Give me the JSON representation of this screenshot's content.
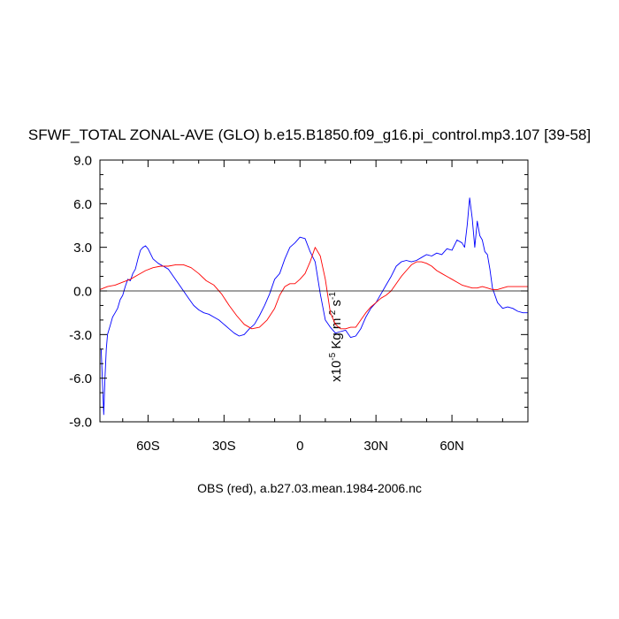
{
  "chart_data": {
    "type": "line",
    "title": "SFWF_TOTAL ZONAL-AVE (GLO) b.e15.B1850.f09_g16.pi_control.mp3.107 [39-58]",
    "xlabel": "OBS (red), a.b27.03.mean.1984-2006.nc",
    "ylabel": {
      "prefix": "x10",
      "exp1": "-5",
      "unit_a": " Kg m",
      "exp2": "-2",
      "unit_b": " s",
      "exp3": "-1"
    },
    "xlim": [
      -79,
      90
    ],
    "ylim": [
      -9,
      9
    ],
    "y_ticks": [
      -9,
      -6,
      -3,
      0,
      3,
      6,
      9
    ],
    "y_tick_labels": [
      "-9.0",
      "-6.0",
      "-3.0",
      "0.0",
      "3.0",
      "6.0",
      "9.0"
    ],
    "x_ticks": [
      -60,
      -30,
      0,
      30,
      60
    ],
    "x_tick_labels": [
      "60S",
      "30S",
      "0",
      "30N",
      "60N"
    ],
    "zero_line": true,
    "grid": false,
    "series": [
      {
        "color": "#0000ff",
        "x": [
          -78.5,
          -77.5,
          -77,
          -76.5,
          -76,
          -75,
          -74,
          -73,
          -72,
          -71,
          -70,
          -69,
          -68,
          -67,
          -66,
          -65,
          -64,
          -63,
          -62,
          -61,
          -60,
          -58,
          -56,
          -54,
          -52,
          -50,
          -48,
          -46,
          -44,
          -42,
          -40,
          -38,
          -36,
          -34,
          -32,
          -30,
          -28,
          -26,
          -24,
          -22,
          -20,
          -18,
          -16,
          -14,
          -12,
          -10,
          -8,
          -6,
          -4,
          -2,
          0,
          2,
          4,
          6,
          8,
          10,
          12,
          14,
          16,
          18,
          20,
          22,
          24,
          26,
          28,
          30,
          32,
          34,
          36,
          38,
          40,
          42,
          44,
          46,
          48,
          50,
          52,
          54,
          56,
          58,
          60,
          62,
          64,
          65,
          66,
          67,
          68,
          69,
          70,
          71,
          72,
          73,
          74,
          75,
          76,
          78,
          80,
          82,
          84,
          86,
          88,
          90
        ],
        "y": [
          -4,
          -8.5,
          -6,
          -4,
          -3,
          -2.4,
          -1.8,
          -1.5,
          -1.2,
          -0.6,
          -0.3,
          0.3,
          0.8,
          0.7,
          1.2,
          1.5,
          2.2,
          2.8,
          3.0,
          3.1,
          2.9,
          2.2,
          1.9,
          1.7,
          1.5,
          1.0,
          0.5,
          0.0,
          -0.5,
          -1.0,
          -1.3,
          -1.5,
          -1.6,
          -1.8,
          -2.0,
          -2.3,
          -2.6,
          -2.9,
          -3.1,
          -3.0,
          -2.6,
          -2.3,
          -1.7,
          -1.0,
          -0.2,
          0.8,
          1.2,
          2.2,
          3.0,
          3.3,
          3.7,
          3.6,
          2.7,
          2.0,
          -0.2,
          -2.0,
          -2.5,
          -2.9,
          -2.8,
          -2.7,
          -3.2,
          -3.1,
          -2.6,
          -1.8,
          -1.2,
          -0.8,
          -0.2,
          0.4,
          1.0,
          1.7,
          2.0,
          2.1,
          2.0,
          2.1,
          2.3,
          2.5,
          2.4,
          2.6,
          2.5,
          2.9,
          2.8,
          3.5,
          3.3,
          3.0,
          4.5,
          6.4,
          5.0,
          3.0,
          4.8,
          3.8,
          3.5,
          2.7,
          2.5,
          1.5,
          0.2,
          -0.8,
          -1.2,
          -1.1,
          -1.2,
          -1.4,
          -1.5,
          -1.5
        ]
      },
      {
        "color": "#ff0000",
        "x": [
          -79,
          -76,
          -73,
          -70,
          -67,
          -64,
          -61,
          -58,
          -55,
          -52,
          -49,
          -46,
          -43,
          -40,
          -37,
          -34,
          -31,
          -28,
          -25,
          -22,
          -19,
          -16,
          -13,
          -10,
          -8,
          -6,
          -4,
          -2,
          0,
          2,
          4,
          6,
          8,
          10,
          12,
          14,
          16,
          18,
          20,
          22,
          24,
          26,
          28,
          30,
          32,
          34,
          36,
          38,
          40,
          42,
          44,
          46,
          48,
          50,
          52,
          54,
          56,
          58,
          60,
          62,
          64,
          66,
          68,
          70,
          72,
          74,
          76,
          78,
          80,
          82,
          84,
          86,
          88,
          90
        ],
        "y": [
          0.1,
          0.3,
          0.4,
          0.6,
          0.8,
          1.1,
          1.4,
          1.6,
          1.7,
          1.7,
          1.8,
          1.8,
          1.6,
          1.2,
          0.7,
          0.4,
          -0.2,
          -1.0,
          -1.7,
          -2.3,
          -2.6,
          -2.5,
          -2.0,
          -1.2,
          -0.3,
          0.3,
          0.5,
          0.5,
          0.8,
          1.2,
          2.0,
          3.0,
          2.4,
          0.8,
          -1.5,
          -2.3,
          -2.6,
          -2.6,
          -2.5,
          -2.5,
          -2.0,
          -1.5,
          -1.1,
          -0.8,
          -0.5,
          -0.3,
          0.0,
          0.5,
          1.0,
          1.4,
          1.8,
          2.0,
          2.0,
          1.9,
          1.7,
          1.4,
          1.2,
          1.0,
          0.8,
          0.6,
          0.4,
          0.3,
          0.2,
          0.2,
          0.3,
          0.2,
          0.1,
          0.1,
          0.2,
          0.3,
          0.3,
          0.3,
          0.3,
          0.3
        ]
      }
    ]
  }
}
